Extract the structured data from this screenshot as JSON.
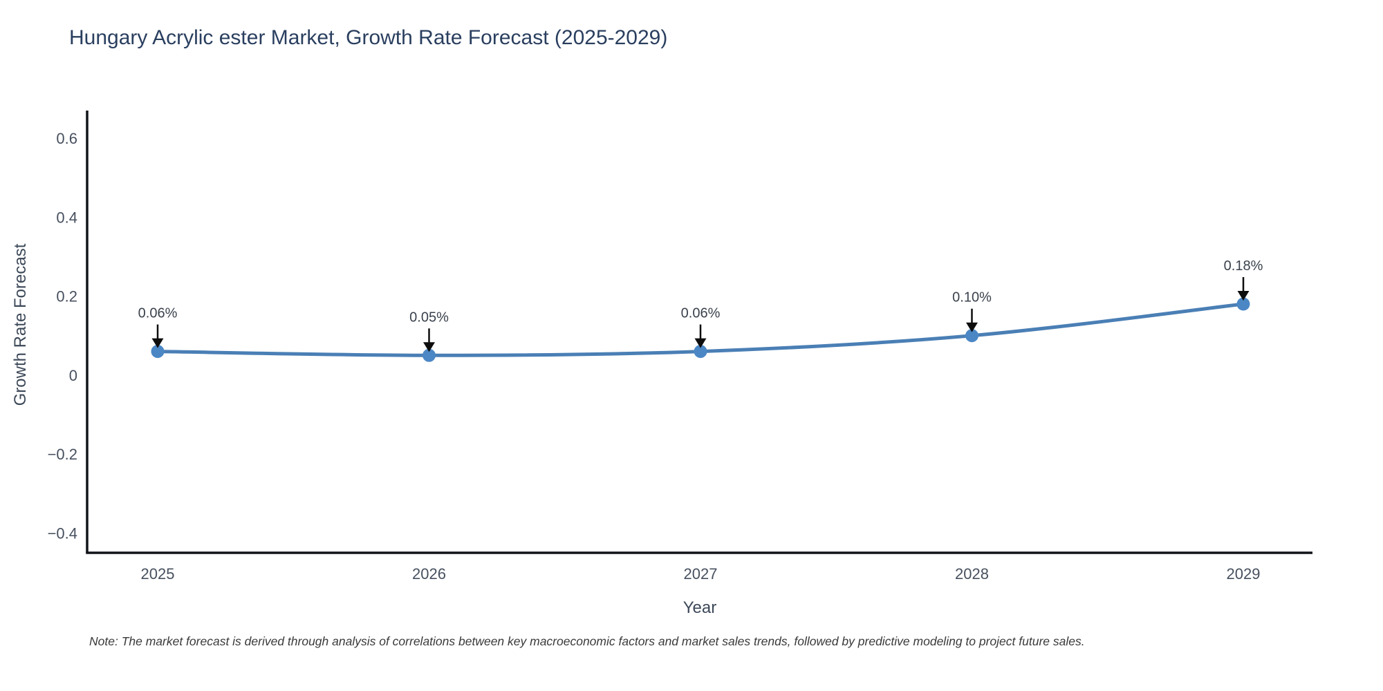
{
  "header": {
    "title": "Hungary Acrylic ester Market, Growth Rate Forecast (2025-2029)"
  },
  "footnote": "Note: The market forecast is derived through analysis of correlations between key macroeconomic factors and market sales trends, followed by predictive modeling to project future sales.",
  "chart_data": {
    "type": "line",
    "title": "Hungary Acrylic ester Market, Growth Rate Forecast (2025-2029)",
    "xlabel": "Year",
    "ylabel": "Growth Rate Forecast",
    "categories": [
      "2025",
      "2026",
      "2027",
      "2028",
      "2029"
    ],
    "series": [
      {
        "name": "Growth Rate Forecast",
        "values": [
          0.06,
          0.05,
          0.06,
          0.1,
          0.18
        ]
      }
    ],
    "point_labels": [
      "0.06%",
      "0.05%",
      "0.06%",
      "0.10%",
      "0.18%"
    ],
    "yticks": [
      -0.4,
      -0.2,
      0,
      0.2,
      0.4,
      0.6
    ],
    "ylim": [
      -0.45,
      0.67
    ],
    "grid": false,
    "legend_position": "none",
    "line_shape": "spline",
    "colors": {
      "line": "#4a7fb5",
      "marker": "#4b87c5",
      "axis_line": "#111418",
      "tick_label": "#47505f",
      "annotation_text": "#3a414c",
      "annotation_arrow": "#0d0d0d",
      "title": "#2a3f5f",
      "background": "#ffffff"
    }
  }
}
